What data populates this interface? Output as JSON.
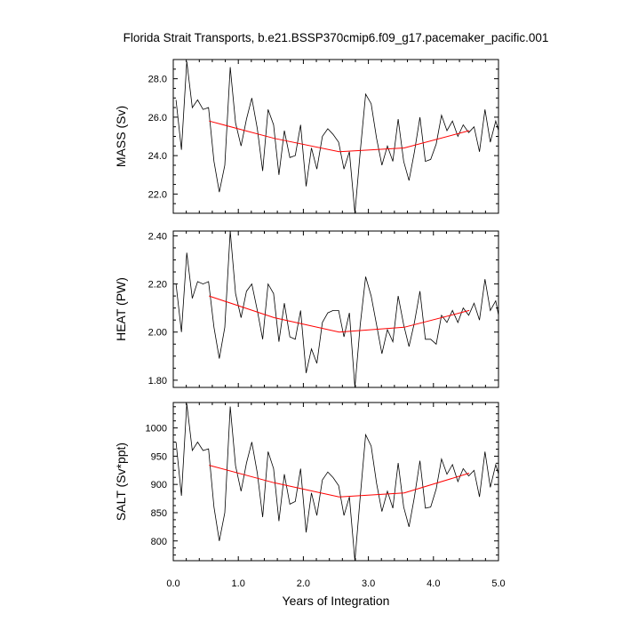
{
  "chart_data": {
    "type": "line",
    "title": "Florida Strait Transports, b.e21.BSSP370cmip6.f09_g17.pacemaker_pacific.001",
    "xlabel": "Years of Integration",
    "xlim": [
      0.0,
      5.0
    ],
    "xticks": [
      {
        "v": 0.0,
        "label": "0.0"
      },
      {
        "v": 1.0,
        "label": "1.0"
      },
      {
        "v": 2.0,
        "label": "2.0"
      },
      {
        "v": 3.0,
        "label": "3.0"
      },
      {
        "v": 4.0,
        "label": "4.0"
      },
      {
        "v": 5.0,
        "label": "5.0"
      }
    ],
    "colors": {
      "monthly": "#000000",
      "annual": "#ff0000"
    },
    "x": [
      0.042,
      0.125,
      0.208,
      0.292,
      0.375,
      0.458,
      0.542,
      0.625,
      0.708,
      0.792,
      0.875,
      0.958,
      1.042,
      1.125,
      1.208,
      1.292,
      1.375,
      1.458,
      1.542,
      1.625,
      1.708,
      1.792,
      1.875,
      1.958,
      2.042,
      2.125,
      2.208,
      2.292,
      2.375,
      2.458,
      2.542,
      2.625,
      2.708,
      2.792,
      2.875,
      2.958,
      3.042,
      3.125,
      3.208,
      3.292,
      3.375,
      3.458,
      3.542,
      3.625,
      3.708,
      3.792,
      3.875,
      3.958,
      4.042,
      4.125,
      4.208,
      4.292,
      4.375,
      4.458,
      4.542,
      4.625,
      4.708,
      4.792,
      4.875,
      4.958,
      5.0
    ],
    "annual_x": [
      0.55,
      1.55,
      2.55,
      3.55,
      4.55
    ],
    "panels": [
      {
        "ylabel": "MASS (Sv)",
        "ylim": [
          21.0,
          29.0
        ],
        "yticks": [
          {
            "v": 22.0,
            "label": "22.0"
          },
          {
            "v": 24.0,
            "label": "24.0"
          },
          {
            "v": 26.0,
            "label": "26.0"
          },
          {
            "v": 28.0,
            "label": "28.0"
          }
        ],
        "monthly": [
          26.9,
          24.3,
          28.9,
          26.5,
          26.9,
          26.4,
          26.5,
          23.7,
          22.1,
          23.5,
          28.6,
          25.7,
          24.5,
          25.9,
          27.0,
          25.4,
          23.2,
          26.4,
          25.6,
          23.0,
          25.3,
          23.9,
          24.0,
          25.6,
          22.4,
          24.4,
          23.3,
          25.0,
          25.4,
          25.1,
          24.7,
          23.3,
          24.2,
          21.0,
          24.2,
          27.2,
          26.7,
          24.9,
          23.5,
          24.5,
          23.7,
          25.9,
          23.7,
          22.7,
          24.2,
          26.0,
          23.7,
          23.8,
          24.6,
          26.1,
          25.3,
          25.8,
          25.0,
          25.6,
          25.2,
          25.5,
          24.2,
          26.4,
          24.7,
          25.8,
          25.3
        ],
        "annual": [
          25.8,
          24.9,
          24.2,
          24.4,
          25.3
        ]
      },
      {
        "ylabel": "HEAT (PW)",
        "ylim": [
          1.77,
          2.42
        ],
        "yticks": [
          {
            "v": 1.8,
            "label": "1.80"
          },
          {
            "v": 2.0,
            "label": "2.00"
          },
          {
            "v": 2.2,
            "label": "2.20"
          },
          {
            "v": 2.4,
            "label": "2.40"
          }
        ],
        "monthly": [
          2.2,
          2.0,
          2.33,
          2.14,
          2.21,
          2.2,
          2.21,
          2.02,
          1.89,
          2.02,
          2.42,
          2.16,
          2.06,
          2.17,
          2.2,
          2.09,
          1.97,
          2.2,
          2.16,
          1.96,
          2.12,
          1.98,
          1.97,
          2.09,
          1.83,
          1.93,
          1.87,
          2.04,
          2.08,
          2.09,
          2.09,
          1.98,
          2.08,
          1.77,
          2.03,
          2.23,
          2.15,
          2.03,
          1.91,
          2.01,
          1.96,
          2.15,
          2.03,
          1.94,
          2.04,
          2.17,
          1.97,
          1.97,
          1.95,
          2.07,
          2.04,
          2.09,
          2.04,
          2.1,
          2.07,
          2.12,
          2.05,
          2.22,
          2.09,
          2.13,
          2.07
        ],
        "annual": [
          2.15,
          2.06,
          2.0,
          2.02,
          2.09
        ]
      },
      {
        "ylabel": "SALT (Sv*ppt)",
        "ylim": [
          765,
          1045
        ],
        "yticks": [
          {
            "v": 800,
            "label": "800"
          },
          {
            "v": 850,
            "label": "850"
          },
          {
            "v": 900,
            "label": "900"
          },
          {
            "v": 950,
            "label": "950"
          },
          {
            "v": 1000,
            "label": "1000"
          }
        ],
        "monthly": [
          975,
          880,
          1043,
          960,
          975,
          960,
          963,
          860,
          800,
          850,
          1038,
          933,
          888,
          938,
          975,
          920,
          842,
          958,
          928,
          835,
          918,
          865,
          870,
          928,
          815,
          885,
          845,
          908,
          922,
          912,
          898,
          845,
          878,
          765,
          878,
          988,
          968,
          902,
          852,
          888,
          858,
          938,
          860,
          825,
          878,
          942,
          858,
          860,
          892,
          945,
          918,
          935,
          905,
          928,
          915,
          925,
          878,
          958,
          895,
          935,
          918
        ],
        "annual": [
          934,
          903,
          878,
          885,
          920
        ]
      }
    ]
  }
}
